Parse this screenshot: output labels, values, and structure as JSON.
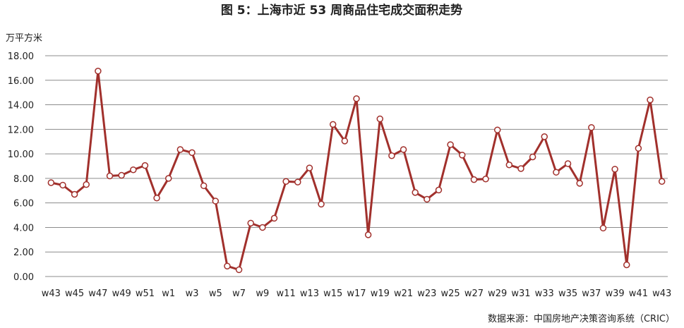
{
  "chart_data": {
    "type": "line",
    "title": "图 5：上海市近 53 周商品住宅成交面积走势",
    "unit_label": "万平方米",
    "source": "数据来源：中国房地产决策咨询系统（CRIC）",
    "xlabel": "",
    "ylabel": "",
    "ylim": [
      0,
      18
    ],
    "y_ticks": [
      "0.00",
      "2.00",
      "4.00",
      "6.00",
      "8.00",
      "10.00",
      "12.00",
      "14.00",
      "16.00",
      "18.00"
    ],
    "x_tick_labels": [
      "w43",
      "w45",
      "w47",
      "w49",
      "w51",
      "w1",
      "w3",
      "w5",
      "w7",
      "w9",
      "w11",
      "w13",
      "w15",
      "w17",
      "w19",
      "w21",
      "w23",
      "w25",
      "w27",
      "w29",
      "w31",
      "w33",
      "w35",
      "w37",
      "w39",
      "w41",
      "w43"
    ],
    "grid": "horizontal",
    "legend": "none",
    "line_color": "#a1302c",
    "marker_fill": "#ffffff",
    "grid_color": "#8c8c8c",
    "categories": [
      "w43",
      "w44",
      "w45",
      "w46",
      "w47",
      "w48",
      "w49",
      "w50",
      "w51",
      "w52",
      "w1",
      "w2",
      "w3",
      "w4",
      "w5",
      "w6",
      "w7",
      "w8",
      "w9",
      "w10",
      "w11",
      "w12",
      "w13",
      "w14",
      "w15",
      "w16",
      "w17",
      "w18",
      "w19",
      "w20",
      "w21",
      "w22",
      "w23",
      "w24",
      "w25",
      "w26",
      "w27",
      "w28",
      "w29",
      "w30",
      "w31",
      "w32",
      "w33",
      "w34",
      "w35",
      "w36",
      "w37",
      "w38",
      "w39",
      "w40",
      "w41",
      "w42",
      "w43"
    ],
    "values": [
      7.65,
      7.45,
      6.7,
      7.5,
      16.75,
      8.2,
      8.25,
      8.7,
      9.05,
      6.4,
      8.0,
      10.35,
      10.1,
      7.4,
      6.15,
      0.85,
      0.55,
      4.35,
      4.0,
      4.75,
      7.75,
      7.7,
      8.85,
      5.9,
      12.4,
      11.05,
      14.5,
      3.4,
      12.85,
      9.85,
      10.35,
      6.85,
      6.3,
      7.05,
      10.75,
      9.9,
      7.9,
      7.95,
      11.95,
      9.1,
      8.8,
      9.75,
      11.4,
      8.5,
      9.2,
      7.6,
      12.15,
      3.95,
      8.75,
      0.95,
      10.45,
      14.4,
      7.75
    ]
  }
}
